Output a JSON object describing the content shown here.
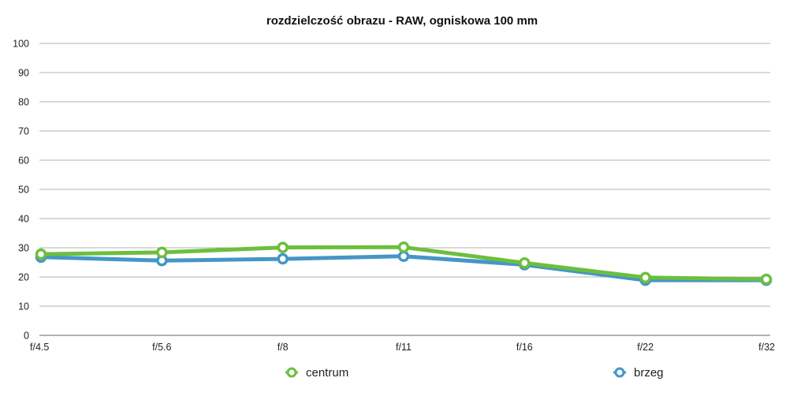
{
  "chart_data": {
    "type": "line",
    "title": "rozdzielczość obrazu - RAW, ogniskowa 100 mm",
    "xlabel": "",
    "ylabel": "",
    "categories": [
      "f/4.5",
      "f/5.6",
      "f/8",
      "f/11",
      "f/16",
      "f/22",
      "f/32"
    ],
    "ylim": [
      0,
      100
    ],
    "yticks": [
      "0",
      "10",
      "20",
      "30",
      "40",
      "50",
      "60",
      "70",
      "80",
      "90",
      "100"
    ],
    "grid": true,
    "legend_position": "bottom",
    "series": [
      {
        "name": "centrum",
        "color": "#6cbf3e",
        "values": [
          27.8,
          28.4,
          30.1,
          30.2,
          24.8,
          19.8,
          19.2
        ]
      },
      {
        "name": "brzeg",
        "color": "#4596c6",
        "values": [
          26.8,
          25.6,
          26.2,
          27.1,
          24.2,
          18.9,
          18.9
        ]
      }
    ]
  }
}
